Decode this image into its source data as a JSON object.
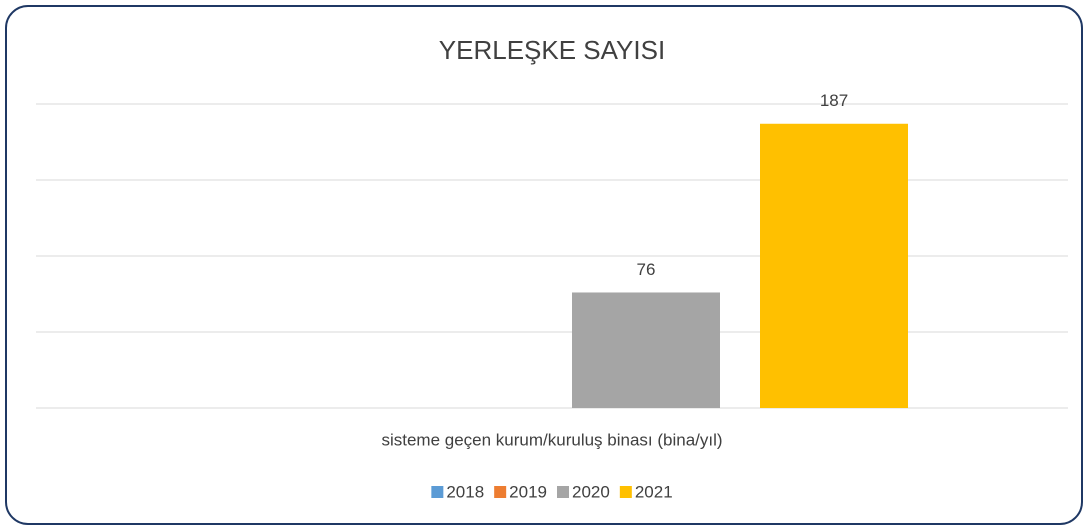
{
  "chart_data": {
    "type": "bar",
    "title": "YERLEŞKE SAYISI",
    "categories": [
      "sisteme geçen kurum/kuruluş binası (bina/yıl)"
    ],
    "series": [
      {
        "name": "2018",
        "color": "#5b9bd5",
        "values": [
          null
        ]
      },
      {
        "name": "2019",
        "color": "#ed7d31",
        "values": [
          null
        ]
      },
      {
        "name": "2020",
        "color": "#a5a5a5",
        "values": [
          76
        ]
      },
      {
        "name": "2021",
        "color": "#ffc000",
        "values": [
          187
        ]
      }
    ],
    "ylim": [
      0,
      200
    ],
    "yticks": [
      0,
      50,
      100,
      150,
      200
    ],
    "grid": true,
    "legend": "bottom"
  }
}
